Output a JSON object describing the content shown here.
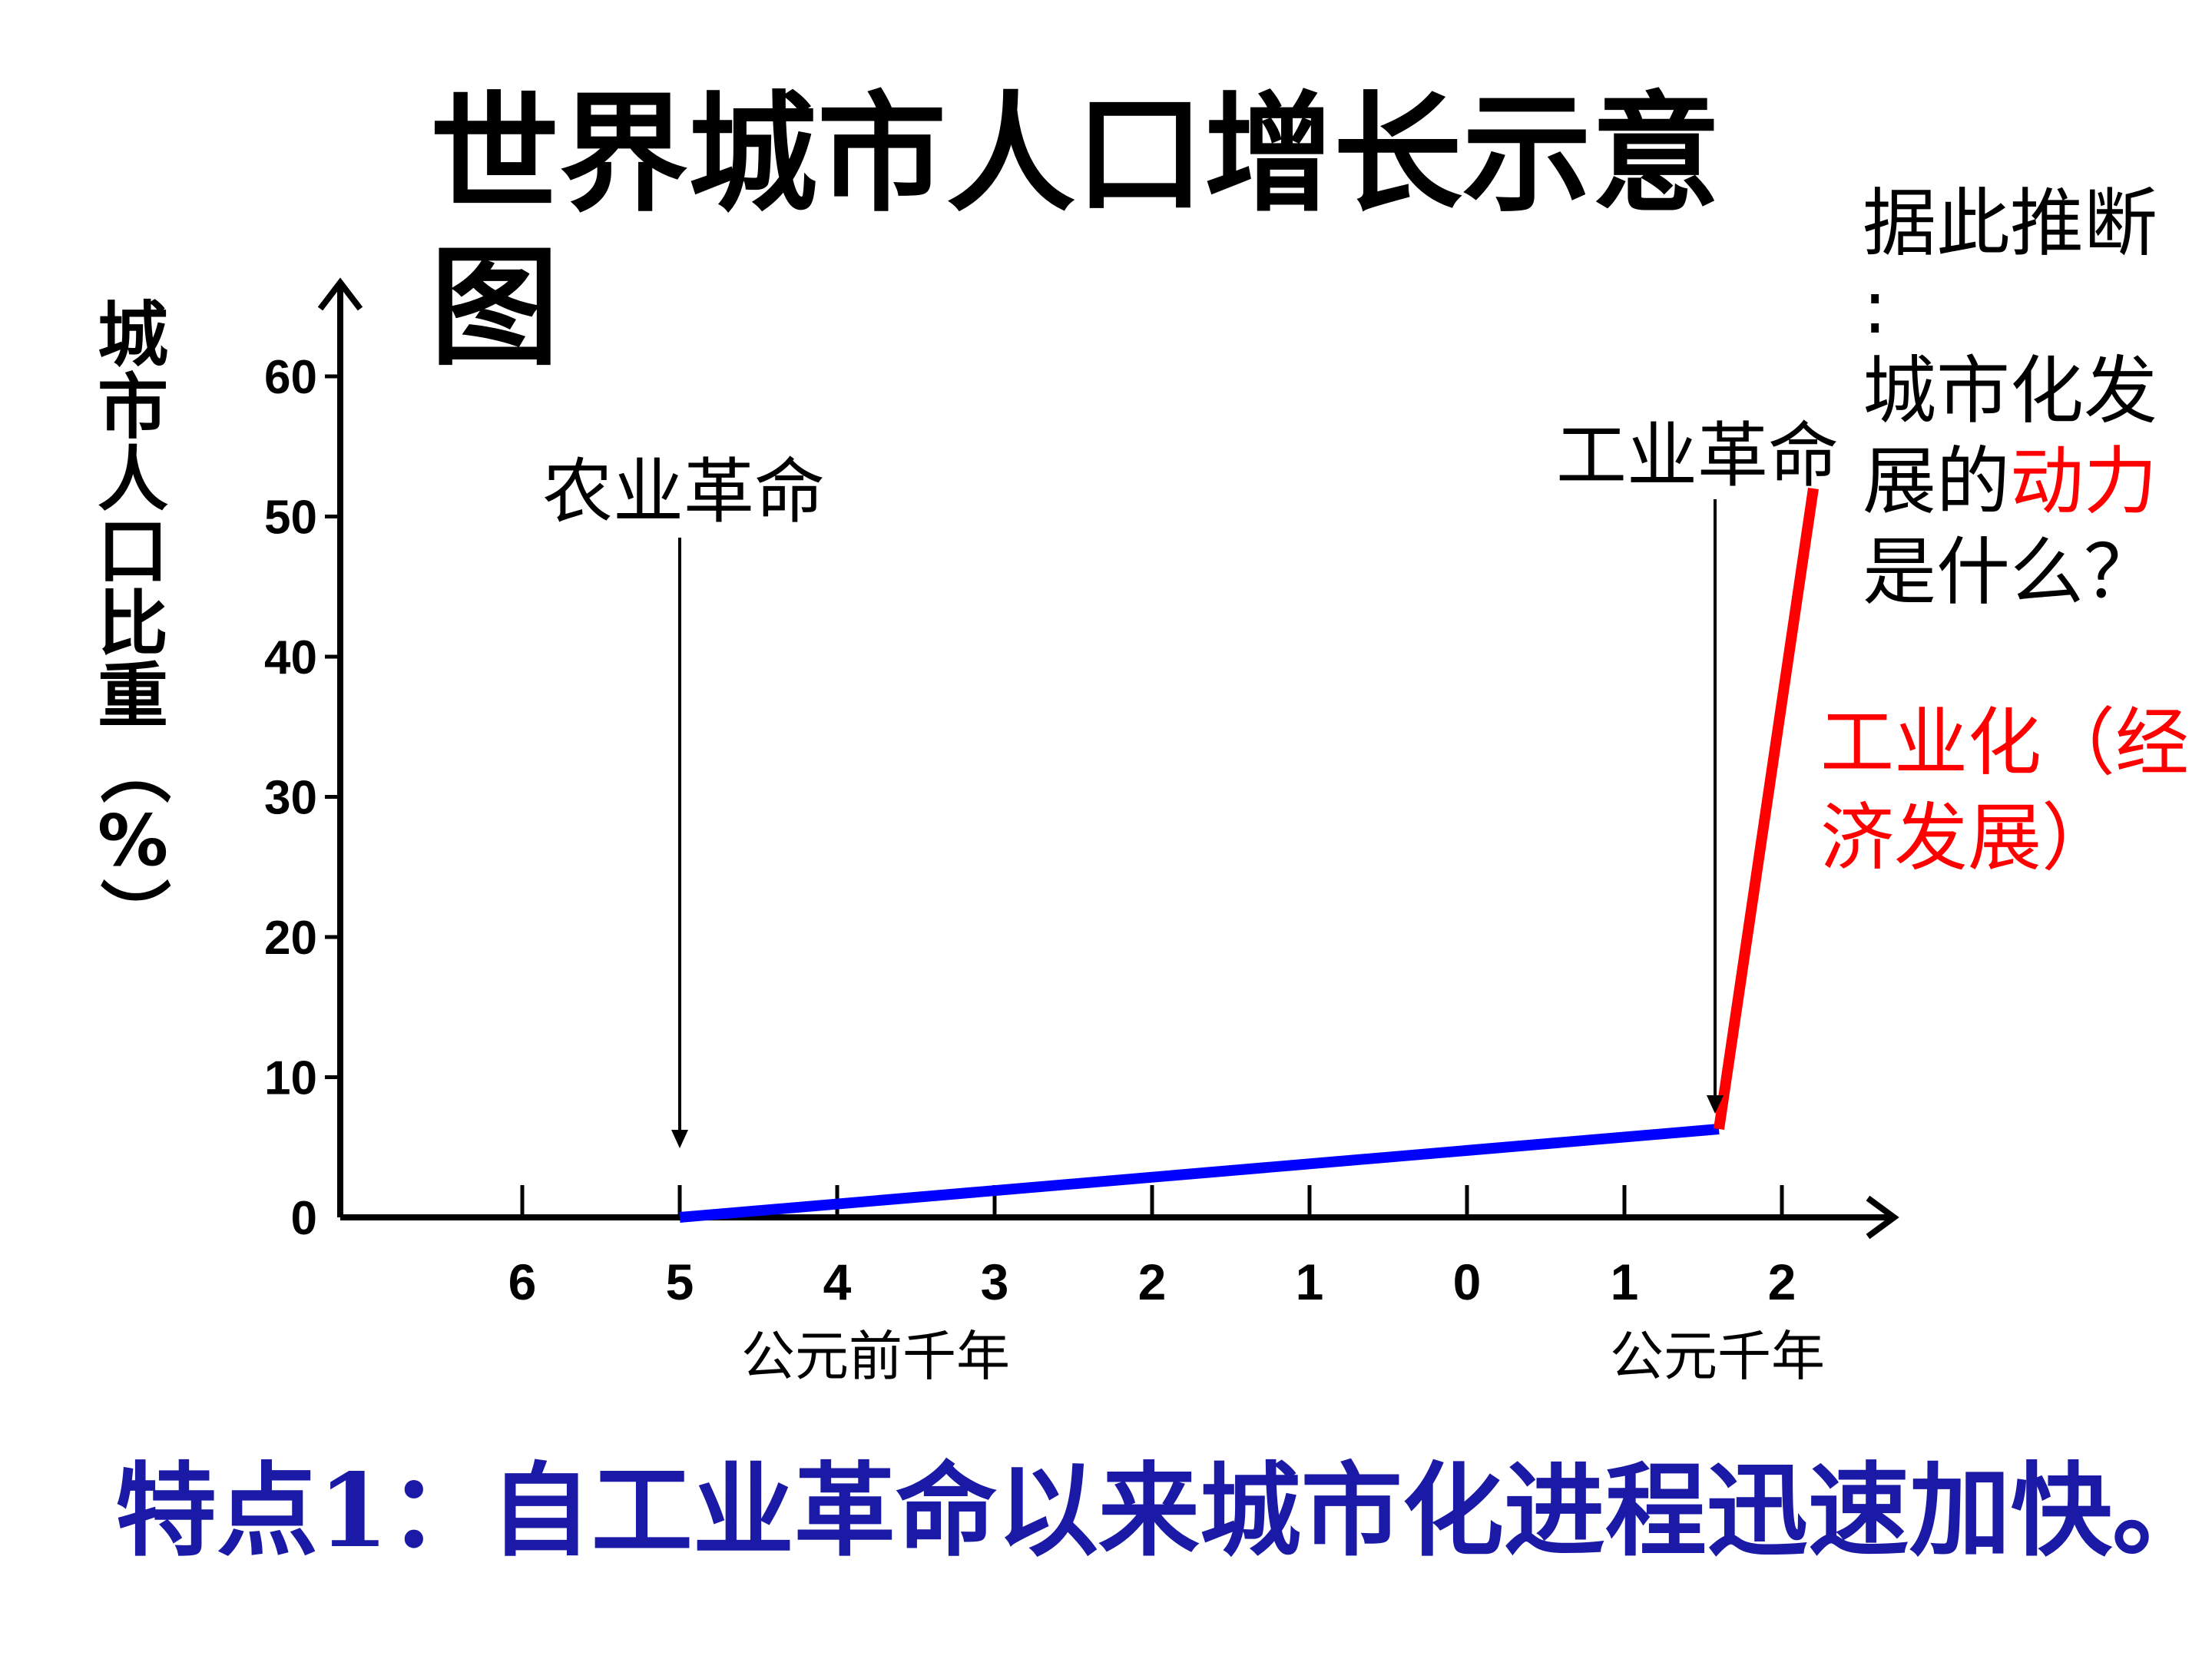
{
  "chart_data": {
    "type": "line",
    "title": "世界城市人口增长示意图",
    "ylabel_chars": [
      "城",
      "市",
      "人",
      "口",
      "比",
      "重",
      "（",
      "%",
      "）"
    ],
    "x_ticks": [
      "6",
      "5",
      "4",
      "3",
      "2",
      "1",
      "0",
      "1",
      "2"
    ],
    "x_group_labels": [
      "公元前千年",
      "公元千年"
    ],
    "y_ticks": [
      "0",
      "10",
      "20",
      "30",
      "40",
      "50",
      "60"
    ],
    "ylim": [
      0,
      60
    ],
    "series": [
      {
        "color": "#0000ff",
        "points": [
          [
            -5,
            0
          ],
          [
            1.6,
            6.3
          ]
        ]
      },
      {
        "color": "#ff0000",
        "points": [
          [
            1.6,
            6.3
          ],
          [
            2.2,
            52
          ]
        ]
      }
    ],
    "annotations": [
      {
        "text": "农业革命",
        "x": -5
      },
      {
        "text": "工业革命",
        "x": 1.6
      }
    ]
  },
  "question": {
    "line1": "据此推断",
    "line2": ":",
    "line3": "城市化发",
    "line4_prefix": "展的",
    "line4_highlight": "动力",
    "line5": "是什么？"
  },
  "answer": {
    "line1": "工业化（经",
    "line2": "济发展）"
  },
  "footer": "特点1：自工业革命以来城市化进程迅速加快。"
}
